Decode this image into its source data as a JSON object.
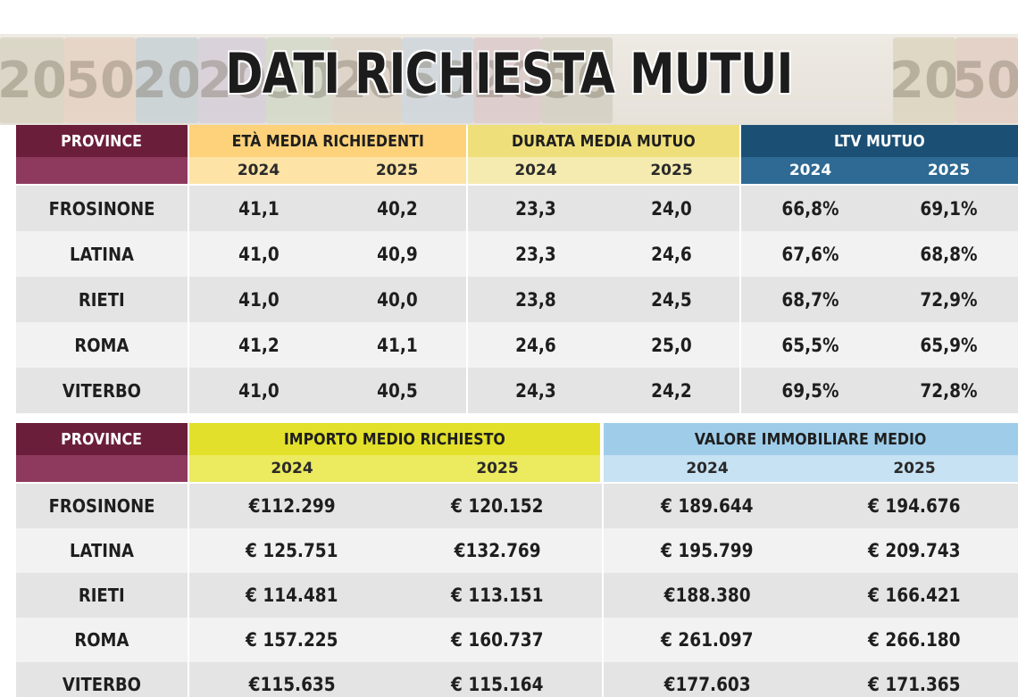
{
  "title": "DATI RICHIESTA MUTUI",
  "banner": {
    "note_labels": [
      "20",
      "50",
      "20",
      "20",
      "50",
      "20",
      "50",
      "20",
      "50",
      "20",
      "50"
    ]
  },
  "colors": {
    "province_header": "#6b1e3a",
    "province_subheader": "#8e3a5e",
    "eta_header": "#fdd27a",
    "eta_subheader": "#fde3a6",
    "durata_header": "#efdf7a",
    "durata_subheader": "#f5ebb0",
    "ltv_header": "#1c4f74",
    "ltv_subheader": "#2e6a93",
    "importo_header": "#e2e02a",
    "importo_subheader": "#ecea5e",
    "valore_header": "#9fcde9",
    "valore_subheader": "#c6e2f3",
    "row_dark": "#e4e4e4",
    "row_light": "#f2f2f2"
  },
  "table1": {
    "province_header": "PROVINCE",
    "groups": [
      {
        "label": "ETÀ MEDIA RICHIEDENTI",
        "years": [
          "2024",
          "2025"
        ]
      },
      {
        "label": "DURATA MEDIA MUTUO",
        "years": [
          "2024",
          "2025"
        ]
      },
      {
        "label": "LTV MUTUO",
        "years": [
          "2024",
          "2025"
        ]
      }
    ],
    "rows": [
      {
        "province": "FROSINONE",
        "values": [
          "41,1",
          "40,2",
          "23,3",
          "24,0",
          "66,8%",
          "69,1%"
        ]
      },
      {
        "province": "LATINA",
        "values": [
          "41,0",
          "40,9",
          "23,3",
          "24,6",
          "67,6%",
          "68,8%"
        ]
      },
      {
        "province": "RIETI",
        "values": [
          "41,0",
          "40,0",
          "23,8",
          "24,5",
          "68,7%",
          "72,9%"
        ]
      },
      {
        "province": "ROMA",
        "values": [
          "41,2",
          "41,1",
          "24,6",
          "25,0",
          "65,5%",
          "65,9%"
        ]
      },
      {
        "province": "VITERBO",
        "values": [
          "41,0",
          "40,5",
          "24,3",
          "24,2",
          "69,5%",
          "72,8%"
        ]
      }
    ]
  },
  "table2": {
    "province_header": "PROVINCE",
    "groups": [
      {
        "label": "IMPORTO MEDIO RICHIESTO",
        "years": [
          "2024",
          "2025"
        ]
      },
      {
        "label": "VALORE IMMOBILIARE MEDIO",
        "years": [
          "2024",
          "2025"
        ]
      }
    ],
    "rows": [
      {
        "province": "FROSINONE",
        "values": [
          "€112.299",
          "€ 120.152",
          "€ 189.644",
          "€ 194.676"
        ]
      },
      {
        "province": "LATINA",
        "values": [
          "€ 125.751",
          "€132.769",
          "€ 195.799",
          "€ 209.743"
        ]
      },
      {
        "province": "RIETI",
        "values": [
          "€ 114.481",
          "€ 113.151",
          "€188.380",
          "€ 166.421"
        ]
      },
      {
        "province": "ROMA",
        "values": [
          "€ 157.225",
          "€ 160.737",
          "€ 261.097",
          "€ 266.180"
        ]
      },
      {
        "province": "VITERBO",
        "values": [
          "€115.635",
          "€ 115.164",
          "€177.603",
          "€ 171.365"
        ]
      }
    ]
  }
}
